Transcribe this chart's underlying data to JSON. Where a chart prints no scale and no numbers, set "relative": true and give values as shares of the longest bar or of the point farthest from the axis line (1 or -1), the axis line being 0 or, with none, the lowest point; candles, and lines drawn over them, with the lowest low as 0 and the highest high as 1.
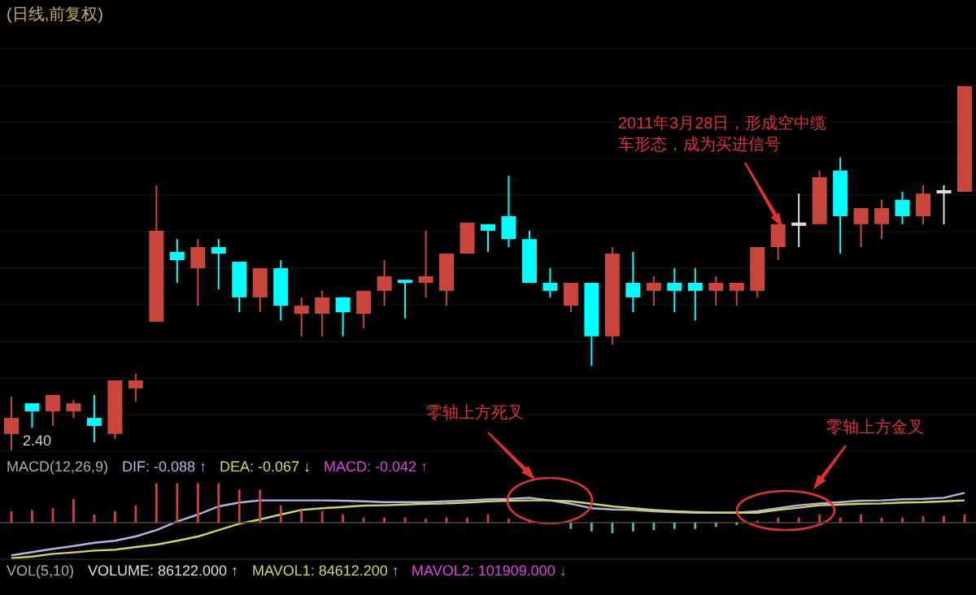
{
  "chart_data": [
    {
      "type": "candlestick",
      "title": "(日线,前复权)",
      "relative": true,
      "categories": [
        null,
        null,
        null,
        null,
        null,
        null,
        null,
        null,
        null,
        null,
        null,
        null,
        null,
        null,
        null,
        null,
        null,
        null,
        null,
        null,
        null,
        null,
        null,
        null,
        null,
        null,
        null,
        null,
        null,
        null,
        null,
        null,
        null,
        null,
        null,
        null,
        null,
        null,
        null,
        null,
        null,
        null,
        null,
        null,
        null,
        null,
        null
      ],
      "ohlc": [
        [
          0.045,
          0.147,
          0,
          0.089
        ],
        [
          0.129,
          0.129,
          0.062,
          0.107
        ],
        [
          0.107,
          0.152,
          0.067,
          0.152
        ],
        [
          0.107,
          0.138,
          0.089,
          0.129
        ],
        [
          0.089,
          0.152,
          0.022,
          0.067
        ],
        [
          0.045,
          0.192,
          0.031,
          0.192
        ],
        [
          0.17,
          0.21,
          0.134,
          0.192
        ],
        [
          0.353,
          0.728,
          0.353,
          0.603
        ],
        [
          0.545,
          0.58,
          0.46,
          0.522
        ],
        [
          0.5,
          0.58,
          0.397,
          0.558
        ],
        [
          0.558,
          0.58,
          0.442,
          0.54
        ],
        [
          0.518,
          0.518,
          0.379,
          0.42
        ],
        [
          0.42,
          0.5,
          0.379,
          0.5
        ],
        [
          0.5,
          0.522,
          0.357,
          0.397
        ],
        [
          0.375,
          0.42,
          0.313,
          0.397
        ],
        [
          0.375,
          0.438,
          0.313,
          0.42
        ],
        [
          0.42,
          0.42,
          0.313,
          0.379
        ],
        [
          0.375,
          0.438,
          0.335,
          0.438
        ],
        [
          0.438,
          0.522,
          0.397,
          0.478
        ],
        [
          0.464,
          0.464,
          0.362,
          0.46
        ],
        [
          0.46,
          0.603,
          0.42,
          0.478
        ],
        [
          0.438,
          0.54,
          0.397,
          0.54
        ],
        [
          0.54,
          0.625,
          0.54,
          0.625
        ],
        [
          0.621,
          0.621,
          0.545,
          0.603
        ],
        [
          0.643,
          0.754,
          0.558,
          0.58
        ],
        [
          0.58,
          0.603,
          0.46,
          0.46
        ],
        [
          0.46,
          0.5,
          0.42,
          0.438
        ],
        [
          0.397,
          0.46,
          0.379,
          0.46
        ],
        [
          0.46,
          0.46,
          0.232,
          0.313
        ],
        [
          0.313,
          0.558,
          0.29,
          0.54
        ],
        [
          0.46,
          0.545,
          0.379,
          0.42
        ],
        [
          0.438,
          0.478,
          0.397,
          0.46
        ],
        [
          0.46,
          0.5,
          0.379,
          0.438
        ],
        [
          0.46,
          0.5,
          0.357,
          0.438
        ],
        [
          0.438,
          0.478,
          0.397,
          0.46
        ],
        [
          0.438,
          0.46,
          0.397,
          0.46
        ],
        [
          0.438,
          0.558,
          0.42,
          0.558
        ],
        [
          0.558,
          0.621,
          0.522,
          0.621
        ],
        [
          0.621,
          0.705,
          0.558,
          0.621
        ],
        [
          0.621,
          0.768,
          0.621,
          0.75
        ],
        [
          0.768,
          0.804,
          0.54,
          0.643
        ],
        [
          0.621,
          0.665,
          0.558,
          0.665
        ],
        [
          0.621,
          0.688,
          0.58,
          0.665
        ],
        [
          0.688,
          0.71,
          0.621,
          0.643
        ],
        [
          0.643,
          0.728,
          0.621,
          0.705
        ],
        [
          0.71,
          0.728,
          0.621,
          0.71
        ],
        [
          0.71,
          1,
          0.71,
          1
        ]
      ],
      "colors": [
        "#c8463c",
        "#00ffff",
        "#c8463c",
        "#c8463c",
        "#00ffff",
        "#c8463c",
        "#c8463c",
        "#c8463c",
        "#00ffff",
        "#c8463c",
        "#00ffff",
        "#00ffff",
        "#c8463c",
        "#00ffff",
        "#c8463c",
        "#c8463c",
        "#00ffff",
        "#c8463c",
        "#c8463c",
        "#00ffff",
        "#c8463c",
        "#c8463c",
        "#c8463c",
        "#00ffff",
        "#00ffff",
        "#00ffff",
        "#00ffff",
        "#c8463c",
        "#00ffff",
        "#c8463c",
        "#00ffff",
        "#c8463c",
        "#00ffff",
        "#00ffff",
        "#c8463c",
        "#c8463c",
        "#c8463c",
        "#c8463c",
        "#dddddd",
        "#c8463c",
        "#00ffff",
        "#c8463c",
        "#c8463c",
        "#00ffff",
        "#c8463c",
        "#dddddd",
        "#c8463c"
      ],
      "annotations": [
        "2011年3月28日，形成空中缆车形态，成为买进信号",
        "2.40"
      ]
    },
    {
      "type": "line",
      "title": "MACD(12,26,9)",
      "relative": true,
      "categories": [
        null,
        null,
        null,
        null,
        null,
        null,
        null,
        null,
        null,
        null,
        null,
        null,
        null,
        null,
        null,
        null,
        null,
        null,
        null,
        null,
        null,
        null,
        null,
        null,
        null,
        null,
        null,
        null,
        null,
        null,
        null,
        null,
        null,
        null,
        null,
        null,
        null,
        null,
        null,
        null,
        null,
        null,
        null,
        null,
        null,
        null,
        null
      ],
      "series": [
        {
          "name": "DIF: -0.088 ↑",
          "color": "#b4b4e6",
          "values": [
            -0.92,
            -0.83,
            -0.74,
            -0.66,
            -0.57,
            -0.51,
            -0.39,
            -0.21,
            0.03,
            0.23,
            0.46,
            0.57,
            0.63,
            0.63,
            0.63,
            0.63,
            0.62,
            0.6,
            0.58,
            0.58,
            0.58,
            0.6,
            0.63,
            0.66,
            0.67,
            0.7,
            0.63,
            0.53,
            0.41,
            0.37,
            0.36,
            0.32,
            0.3,
            0.28,
            0.28,
            0.28,
            0.32,
            0.41,
            0.49,
            0.54,
            0.58,
            0.62,
            0.63,
            0.66,
            0.67,
            0.7,
            0.84
          ]
        },
        {
          "name": "DEA: -0.067 ↓",
          "color": "#d4d45a",
          "values": [
            -1,
            -0.96,
            -0.88,
            -0.84,
            -0.79,
            -0.76,
            -0.69,
            -0.62,
            -0.51,
            -0.39,
            -0.21,
            -0.03,
            0.09,
            0.23,
            0.36,
            0.41,
            0.44,
            0.48,
            0.49,
            0.51,
            0.53,
            0.54,
            0.57,
            0.6,
            0.62,
            0.63,
            0.63,
            0.6,
            0.53,
            0.46,
            0.41,
            0.36,
            0.32,
            0.3,
            0.28,
            0.28,
            0.28,
            0.36,
            0.42,
            0.49,
            0.51,
            0.53,
            0.54,
            0.57,
            0.58,
            0.6,
            0.63
          ]
        }
      ],
      "annotations": [
        "零轴上方死叉",
        "零轴上方金叉"
      ]
    },
    {
      "type": "bar",
      "relative": true,
      "categories": [
        null,
        null,
        null,
        null,
        null,
        null,
        null,
        null,
        null,
        null,
        null,
        null,
        null,
        null,
        null,
        null,
        null,
        null,
        null,
        null,
        null,
        null,
        null,
        null,
        null,
        null,
        null,
        null,
        null,
        null,
        null,
        null,
        null,
        null,
        null,
        null,
        null,
        null,
        null,
        null,
        null,
        null,
        null,
        null,
        null,
        null,
        null
      ],
      "series": [
        {
          "name": "MACD: -0.042 ↑",
          "color": "#e040e0",
          "values": [
            0.29,
            0.32,
            0.37,
            0.6,
            0.21,
            0.29,
            0.44,
            1,
            1,
            1,
            1,
            0.84,
            0.84,
            0.44,
            0.32,
            0.29,
            0.21,
            0.13,
            0.13,
            0.13,
            0.1,
            0.13,
            0.13,
            0.21,
            0.1,
            0.06,
            null,
            -0.16,
            -0.22,
            -0.27,
            -0.22,
            -0.19,
            -0.16,
            -0.16,
            -0.11,
            -0.06,
            0.05,
            0.13,
            0.13,
            0.21,
            0.13,
            0.21,
            0.13,
            0.13,
            0.16,
            0.17,
            0.21
          ],
          "colors": [
            "#d04040",
            "#d04040",
            "#d04040",
            "#d04040",
            "#d04040",
            "#d04040",
            "#d04040",
            "#d04040",
            "#d04040",
            "#d04040",
            "#d04040",
            "#d04040",
            "#d04040",
            "#d04040",
            "#d04040",
            "#d04040",
            "#d04040",
            "#d04040",
            "#d04040",
            "#d04040",
            "#d04040",
            "#d04040",
            "#d04040",
            "#d04040",
            "#d04040",
            "#d04040",
            null,
            "#3cc8a0",
            "#3cc8a0",
            "#3cc8a0",
            "#3cc8a0",
            "#3cc8a0",
            "#3cc8a0",
            "#3cc8a0",
            "#3cc8a0",
            "#3cc8a0",
            "#d04040",
            "#d04040",
            "#d04040",
            "#d04040",
            "#d04040",
            "#d04040",
            "#d04040",
            "#d04040",
            "#d04040",
            "#d04040",
            "#d04040"
          ]
        }
      ]
    },
    {
      "type": "other",
      "title": "VOL(5,10)",
      "annotations": [
        "VOLUME: 86122.000 ↑",
        "MAVOL1: 84612.200 ↑",
        "MAVOL2: 101909.000 ↓"
      ]
    }
  ]
}
